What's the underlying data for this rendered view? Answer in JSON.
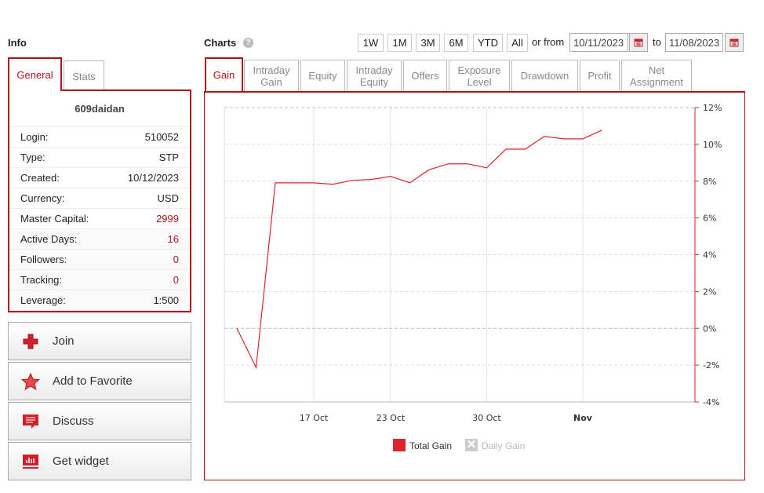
{
  "info": {
    "title": "Info",
    "tabs": [
      {
        "label": "General"
      },
      {
        "label": "Stats"
      }
    ],
    "account_name": "609daidan",
    "rows": [
      {
        "label": "Login:",
        "value": "510052"
      },
      {
        "label": "Type:",
        "value": "STP"
      },
      {
        "label": "Created:",
        "value": "10/12/2023"
      },
      {
        "label": "Currency:",
        "value": "USD"
      },
      {
        "label": "Master Capital:",
        "value": "2999",
        "highlight": true
      },
      {
        "label": "Active Days:",
        "value": "16",
        "highlight": true
      },
      {
        "label": "Followers:",
        "value": "0",
        "highlight": true
      },
      {
        "label": "Tracking:",
        "value": "0",
        "highlight": true
      },
      {
        "label": "Leverage:",
        "value": "1:500"
      }
    ]
  },
  "actions": [
    {
      "label": "Join",
      "icon": "plus-icon"
    },
    {
      "label": "Add to Favorite",
      "icon": "star-icon"
    },
    {
      "label": "Discuss",
      "icon": "comment-icon"
    },
    {
      "label": "Get widget",
      "icon": "widget-chart-icon"
    }
  ],
  "charts": {
    "title": "Charts",
    "ranges": [
      "1W",
      "1M",
      "3M",
      "6M",
      "YTD",
      "All"
    ],
    "or_from": "or from",
    "from_date": "10/11/2023",
    "to": "to",
    "to_date": "11/08/2023",
    "tabs": [
      {
        "label": "Gain"
      },
      {
        "label": "Intraday Gain"
      },
      {
        "label": "Equity"
      },
      {
        "label": "Intraday Equity"
      },
      {
        "label": "Offers"
      },
      {
        "label": "Exposure Level"
      },
      {
        "label": "Drawdown"
      },
      {
        "label": "Profit"
      },
      {
        "label": "Net Assignment"
      }
    ]
  },
  "colors": {
    "accent": "#b3121b",
    "line": "#e0222c"
  },
  "chart_data": {
    "type": "line",
    "y_axis_side": "right",
    "ylim": [
      -4,
      12
    ],
    "y_ticks": [
      "12%",
      "10%",
      "8%",
      "6%",
      "4%",
      "2%",
      "0%",
      "-2%",
      "-4%"
    ],
    "x_ticks": [
      {
        "label": "17 Oct",
        "x": "2023-10-17"
      },
      {
        "label": "23 Oct",
        "x": "2023-10-23"
      },
      {
        "label": "30 Oct",
        "x": "2023-10-30"
      },
      {
        "label": "Nov",
        "x": "2023-11-06",
        "bold": true
      }
    ],
    "grid": true,
    "x": [
      "2023-10-11",
      "2023-10-12",
      "2023-10-13",
      "2023-10-16",
      "2023-10-17",
      "2023-10-18",
      "2023-10-19",
      "2023-10-20",
      "2023-10-23",
      "2023-10-24",
      "2023-10-25",
      "2023-10-26",
      "2023-10-27",
      "2023-10-30",
      "2023-10-31",
      "2023-11-01",
      "2023-11-02",
      "2023-11-03",
      "2023-11-06",
      "2023-11-07"
    ],
    "series": [
      {
        "name": "Total Gain",
        "values": [
          0,
          -2.13,
          7.91,
          7.91,
          7.91,
          7.83,
          8.04,
          8.09,
          8.26,
          7.91,
          8.62,
          8.94,
          8.94,
          8.72,
          9.74,
          9.74,
          10.43,
          10.3,
          10.3,
          10.77
        ],
        "visible": true
      },
      {
        "name": "Daily Gain",
        "visible": false
      }
    ],
    "legend": "bottom"
  }
}
